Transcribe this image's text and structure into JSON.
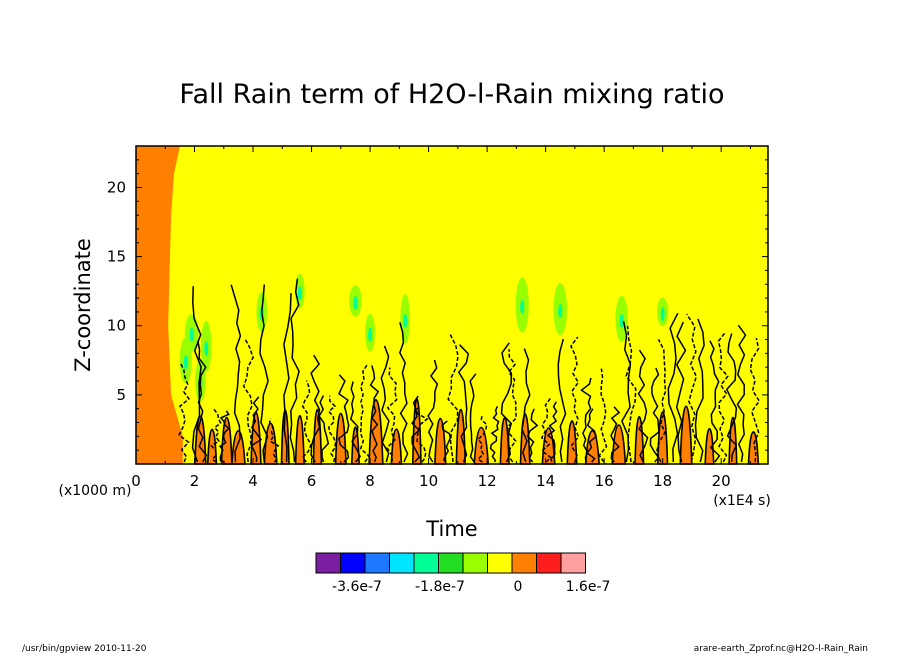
{
  "chart_data": {
    "type": "heatmap",
    "title": "Fall Rain term of H2O-l-Rain mixing ratio",
    "xlabel": "Time",
    "ylabel": "Z-coordinate",
    "x_scale_label": "(x1E4 s)",
    "y_scale_label": "(x1000 m)",
    "xlim": [
      0,
      21.6
    ],
    "ylim": [
      0,
      23
    ],
    "xticks": [
      0,
      2,
      4,
      6,
      8,
      10,
      12,
      14,
      16,
      18,
      20
    ],
    "yticks": [
      5,
      10,
      15,
      20
    ],
    "grid": false,
    "background_level": "0",
    "colorbar": {
      "colors": [
        "#7a1fa2",
        "#0000ff",
        "#1e78ff",
        "#00e5ff",
        "#00ff96",
        "#22dd22",
        "#99ff00",
        "#ffff00",
        "#ff7f00",
        "#ff1e1e",
        "#ffa0a0"
      ],
      "labels": [
        "-3.6e-7",
        "-1.8e-7",
        "0",
        "1.6e-7"
      ]
    },
    "positive_region": {
      "description": "orange band at start of simulation",
      "x_boundary": [
        [
          1.5,
          23
        ],
        [
          1.3,
          21
        ],
        [
          1.2,
          18
        ],
        [
          1.15,
          14
        ],
        [
          1.1,
          10
        ],
        [
          1.2,
          5
        ],
        [
          1.6,
          2
        ],
        [
          1.6,
          0
        ]
      ]
    },
    "orange_cells_x": [
      2.2,
      2.6,
      3.1,
      3.5,
      4.1,
      4.6,
      5.1,
      5.6,
      6.2,
      7.0,
      7.5,
      8.2,
      8.9,
      9.6,
      10.4,
      11.1,
      11.8,
      12.6,
      13.3,
      14.1,
      14.9,
      15.6,
      16.5,
      17.2,
      18.0,
      18.8,
      19.6,
      20.4,
      21.1
    ],
    "green_cells": [
      {
        "x": 1.7,
        "z": 7.5
      },
      {
        "x": 1.9,
        "z": 9.5
      },
      {
        "x": 2.2,
        "z": 6.0
      },
      {
        "x": 2.4,
        "z": 8.5
      },
      {
        "x": 4.3,
        "z": 11.0
      },
      {
        "x": 5.6,
        "z": 12.5
      },
      {
        "x": 7.5,
        "z": 11.8
      },
      {
        "x": 9.2,
        "z": 10.5
      },
      {
        "x": 13.2,
        "z": 11.5
      },
      {
        "x": 14.5,
        "z": 11.2
      },
      {
        "x": 16.6,
        "z": 10.5
      },
      {
        "x": 18.0,
        "z": 11.0
      },
      {
        "x": 8.0,
        "z": 9.5
      }
    ]
  },
  "footer": {
    "left": "/usr/bin/gpview  2010-11-20",
    "right": "arare-earth_Zprof.nc@H2O-l-Rain_Rain"
  }
}
